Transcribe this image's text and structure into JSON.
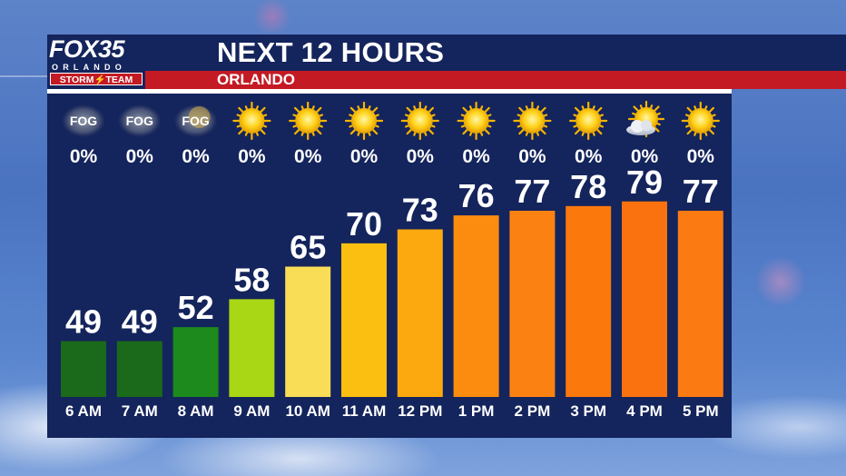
{
  "header": {
    "title": "NEXT 12 HOURS",
    "subtitle": "ORLANDO"
  },
  "logo": {
    "brand": "FOX35",
    "city": "ORLANDO",
    "team": "STORM⚡TEAM"
  },
  "chart_data": {
    "type": "bar",
    "categories": [
      "6 AM",
      "7 AM",
      "8 AM",
      "9 AM",
      "10 AM",
      "11 AM",
      "12 PM",
      "1 PM",
      "2 PM",
      "3 PM",
      "4 PM",
      "5 PM"
    ],
    "values": [
      49,
      49,
      52,
      58,
      65,
      70,
      73,
      76,
      77,
      78,
      79,
      77
    ],
    "precip": [
      "0%",
      "0%",
      "0%",
      "0%",
      "0%",
      "0%",
      "0%",
      "0%",
      "0%",
      "0%",
      "0%",
      "0%"
    ],
    "conditions": [
      "fog",
      "fog",
      "fog",
      "sunny",
      "sunny",
      "sunny",
      "sunny",
      "sunny",
      "sunny",
      "sunny",
      "partly-cloudy",
      "sunny"
    ],
    "condition_labels": [
      "FOG",
      "FOG",
      "FOG",
      "",
      "",
      "",
      "",
      "",
      "",
      "",
      "",
      ""
    ],
    "bar_colors": [
      "#1b6a1b",
      "#1b6a1b",
      "#1c8a1c",
      "#a9d615",
      "#f9dd56",
      "#fbbf12",
      "#fba90e",
      "#fb8c10",
      "#fb8212",
      "#fa780c",
      "#fa720f",
      "#fb7a12"
    ],
    "ylim": [
      37,
      93
    ],
    "grid": false
  }
}
